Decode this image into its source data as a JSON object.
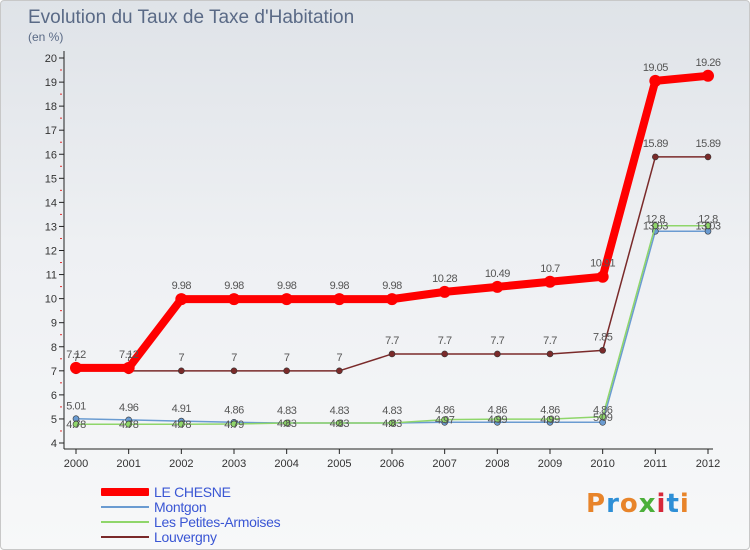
{
  "header": {
    "title": "Evolution du Taux de Taxe d'Habitation",
    "unit": "(en %)"
  },
  "brand": {
    "text": "Proxiti",
    "colors": [
      "#e8842a",
      "#2e8fd6",
      "#e8842a",
      "#4caf3a",
      "#d6283a",
      "#2e8fd6",
      "#e8842a"
    ]
  },
  "chart_data": {
    "type": "line",
    "x": [
      2000,
      2001,
      2002,
      2003,
      2004,
      2005,
      2006,
      2007,
      2008,
      2009,
      2010,
      2011,
      2012
    ],
    "ylim": [
      4,
      20
    ],
    "yticks": [
      4,
      5,
      6,
      7,
      8,
      9,
      10,
      11,
      12,
      13,
      14,
      15,
      16,
      17,
      18,
      19,
      20
    ],
    "grid": false,
    "legend_position": "bottom-left",
    "series": [
      {
        "name": "LE CHESNE",
        "color": "#ff0000",
        "values": [
          7.12,
          7.12,
          9.98,
          9.98,
          9.98,
          9.98,
          9.98,
          10.28,
          10.49,
          10.7,
          10.91,
          19.05,
          19.26
        ],
        "labels": [
          "7.12",
          "7.12",
          "9.98",
          "9.98",
          "9.98",
          "9.98",
          "9.98",
          "10.28",
          "10.49",
          "10.7",
          "10.91",
          "19.05",
          "19.26"
        ]
      },
      {
        "name": "Montgon",
        "color": "#6a9bd1",
        "values": [
          5.01,
          4.96,
          4.91,
          4.86,
          4.83,
          4.83,
          4.83,
          4.86,
          4.86,
          4.86,
          4.86,
          12.8,
          12.8
        ],
        "labels": [
          "5.01",
          "4.96",
          "4.91",
          "4.86",
          "4.83",
          "4.83",
          "4.83",
          "4.86",
          "4.86",
          "4.86",
          "4.86",
          "12.8",
          "12.8"
        ]
      },
      {
        "name": "Les Petites-Armoises",
        "color": "#8fd66a",
        "values": [
          4.78,
          4.78,
          4.78,
          4.79,
          4.83,
          4.83,
          4.83,
          4.97,
          4.99,
          4.99,
          5.09,
          13.03,
          13.03
        ],
        "labels": [
          "4.78",
          "4.78",
          "4.78",
          "4.79",
          "4.83",
          "4.83",
          "4.83",
          "4.97",
          "4.99",
          "4.99",
          "5.09",
          "13.03",
          "13.03"
        ]
      },
      {
        "name": "Louvergny",
        "color": "#7a2a2a",
        "values": [
          7,
          7,
          7,
          7,
          7,
          7,
          7.7,
          7.7,
          7.7,
          7.7,
          7.85,
          15.89,
          15.89
        ],
        "labels": [
          "7",
          "7",
          "7",
          "7",
          "7",
          "7",
          "7.7",
          "7.7",
          "7.7",
          "7.7",
          "7.85",
          "15.89",
          "15.89"
        ]
      }
    ]
  }
}
